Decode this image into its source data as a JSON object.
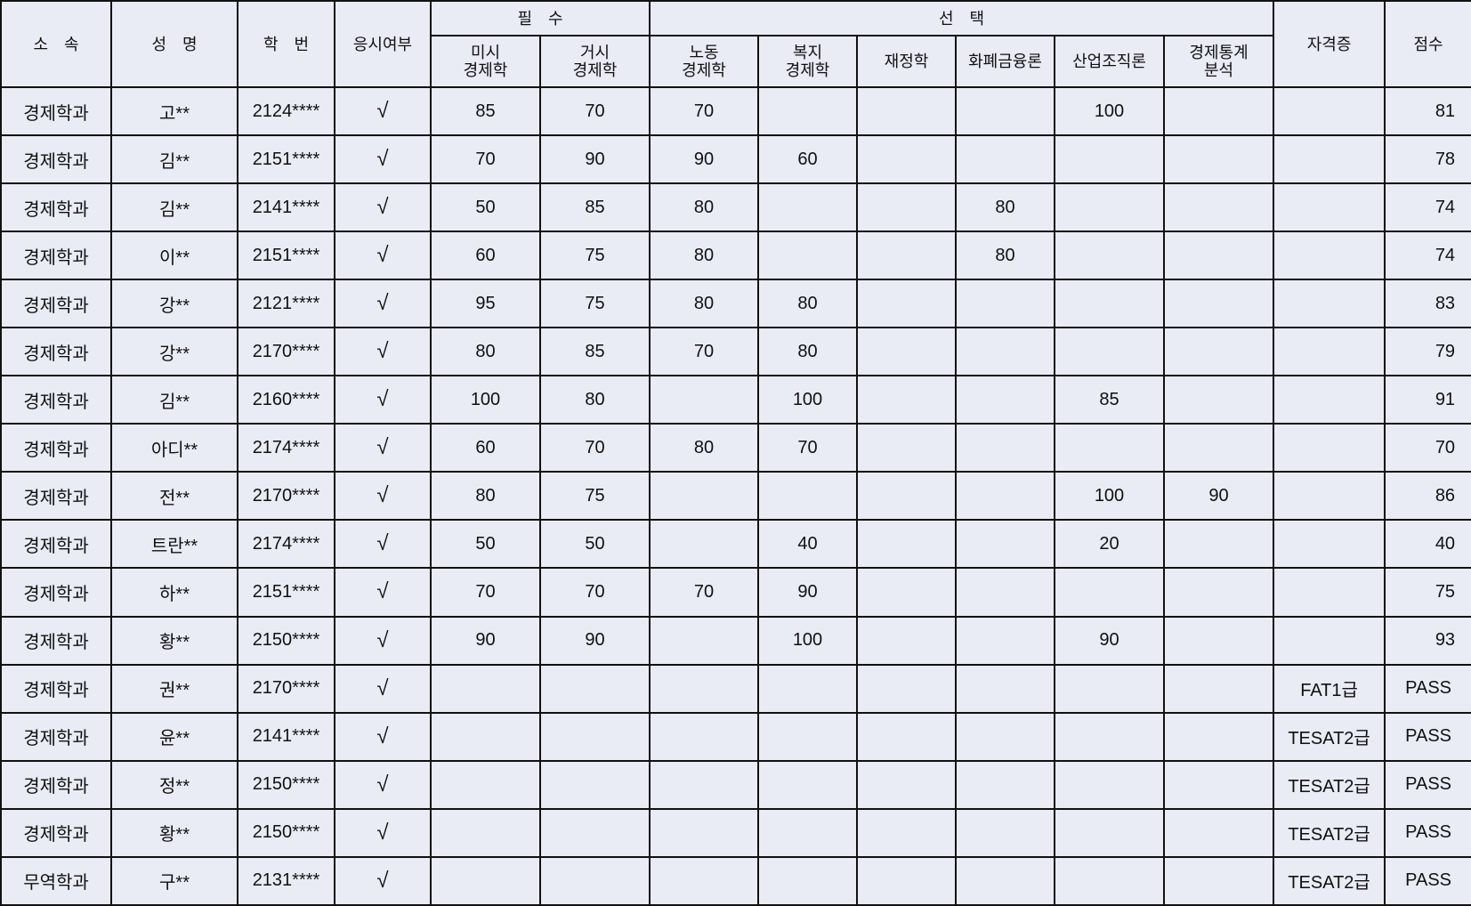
{
  "headers": {
    "dept": "소　속",
    "name": "성　명",
    "id": "학　번",
    "attend": "응시여부",
    "required": "필　수",
    "elective": "선　택",
    "cert": "자격증",
    "score": "점수",
    "subjects": [
      "미시\n경제학",
      "거시\n경제학",
      "노동\n경제학",
      "복지\n경제학",
      "재정학",
      "화폐금융론",
      "산업조직론",
      "경제통계\n분석"
    ]
  },
  "rows": [
    {
      "dept": "경제학과",
      "name": "고**",
      "id": "2124****",
      "attend": "√",
      "subjects": [
        "85",
        "70",
        "70",
        "",
        "",
        "",
        "100",
        ""
      ],
      "cert": "",
      "score": "81"
    },
    {
      "dept": "경제학과",
      "name": "김**",
      "id": "2151****",
      "attend": "√",
      "subjects": [
        "70",
        "90",
        "90",
        "60",
        "",
        "",
        "",
        ""
      ],
      "cert": "",
      "score": "78"
    },
    {
      "dept": "경제학과",
      "name": "김**",
      "id": "2141****",
      "attend": "√",
      "subjects": [
        "50",
        "85",
        "80",
        "",
        "",
        "80",
        "",
        ""
      ],
      "cert": "",
      "score": "74"
    },
    {
      "dept": "경제학과",
      "name": "이**",
      "id": "2151****",
      "attend": "√",
      "subjects": [
        "60",
        "75",
        "80",
        "",
        "",
        "80",
        "",
        ""
      ],
      "cert": "",
      "score": "74"
    },
    {
      "dept": "경제학과",
      "name": "강**",
      "id": "2121****",
      "attend": "√",
      "subjects": [
        "95",
        "75",
        "80",
        "80",
        "",
        "",
        "",
        ""
      ],
      "cert": "",
      "score": "83"
    },
    {
      "dept": "경제학과",
      "name": "강**",
      "id": "2170****",
      "attend": "√",
      "subjects": [
        "80",
        "85",
        "70",
        "80",
        "",
        "",
        "",
        ""
      ],
      "cert": "",
      "score": "79"
    },
    {
      "dept": "경제학과",
      "name": "김**",
      "id": "2160****",
      "attend": "√",
      "subjects": [
        "100",
        "80",
        "",
        "100",
        "",
        "",
        "85",
        ""
      ],
      "cert": "",
      "score": "91"
    },
    {
      "dept": "경제학과",
      "name": "아디**",
      "id": "2174****",
      "attend": "√",
      "subjects": [
        "60",
        "70",
        "80",
        "70",
        "",
        "",
        "",
        ""
      ],
      "cert": "",
      "score": "70"
    },
    {
      "dept": "경제학과",
      "name": "전**",
      "id": "2170****",
      "attend": "√",
      "subjects": [
        "80",
        "75",
        "",
        "",
        "",
        "",
        "100",
        "90"
      ],
      "cert": "",
      "score": "86"
    },
    {
      "dept": "경제학과",
      "name": "트란**",
      "id": "2174****",
      "attend": "√",
      "subjects": [
        "50",
        "50",
        "",
        "40",
        "",
        "",
        "20",
        ""
      ],
      "cert": "",
      "score": "40"
    },
    {
      "dept": "경제학과",
      "name": "하**",
      "id": "2151****",
      "attend": "√",
      "subjects": [
        "70",
        "70",
        "70",
        "90",
        "",
        "",
        "",
        ""
      ],
      "cert": "",
      "score": "75"
    },
    {
      "dept": "경제학과",
      "name": "황**",
      "id": "2150****",
      "attend": "√",
      "subjects": [
        "90",
        "90",
        "",
        "100",
        "",
        "",
        "90",
        ""
      ],
      "cert": "",
      "score": "93"
    },
    {
      "dept": "경제학과",
      "name": "권**",
      "id": "2170****",
      "attend": "√",
      "subjects": [
        "",
        "",
        "",
        "",
        "",
        "",
        "",
        ""
      ],
      "cert": "FAT1급",
      "score": "PASS"
    },
    {
      "dept": "경제학과",
      "name": "윤**",
      "id": "2141****",
      "attend": "√",
      "subjects": [
        "",
        "",
        "",
        "",
        "",
        "",
        "",
        ""
      ],
      "cert": "TESAT2급",
      "score": "PASS"
    },
    {
      "dept": "경제학과",
      "name": "정**",
      "id": "2150****",
      "attend": "√",
      "subjects": [
        "",
        "",
        "",
        "",
        "",
        "",
        "",
        ""
      ],
      "cert": "TESAT2급",
      "score": "PASS"
    },
    {
      "dept": "경제학과",
      "name": "황**",
      "id": "2150****",
      "attend": "√",
      "subjects": [
        "",
        "",
        "",
        "",
        "",
        "",
        "",
        ""
      ],
      "cert": "TESAT2급",
      "score": "PASS"
    },
    {
      "dept": "무역학과",
      "name": "구**",
      "id": "2131****",
      "attend": "√",
      "subjects": [
        "",
        "",
        "",
        "",
        "",
        "",
        "",
        ""
      ],
      "cert": "TESAT2급",
      "score": "PASS"
    }
  ],
  "colors": {
    "background": "#e9ebf5",
    "border": "#111111"
  }
}
